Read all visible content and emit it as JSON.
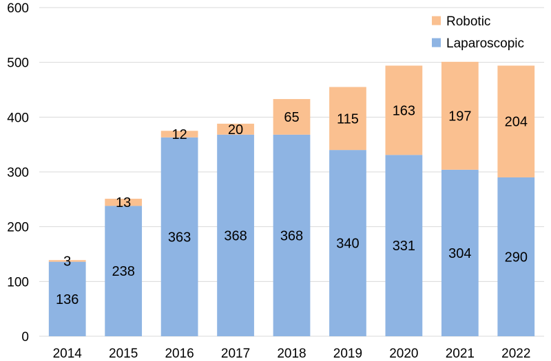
{
  "chart_data": {
    "type": "bar",
    "stacked": true,
    "title": "",
    "xlabel": "",
    "ylabel": "",
    "ylim": [
      0,
      600
    ],
    "yticks": [
      0,
      100,
      200,
      300,
      400,
      500,
      600
    ],
    "grid": true,
    "legend_position": "top-right",
    "categories": [
      "2014",
      "2015",
      "2016",
      "2017",
      "2018",
      "2019",
      "2020",
      "2021",
      "2022"
    ],
    "series": [
      {
        "name": "Laparoscopic",
        "color": "#8eb4e3",
        "values": [
          136,
          238,
          363,
          368,
          368,
          340,
          331,
          304,
          290
        ]
      },
      {
        "name": "Robotic",
        "color": "#fac090",
        "values": [
          3,
          13,
          12,
          20,
          65,
          115,
          163,
          197,
          204
        ]
      }
    ],
    "legend_order": [
      "Robotic",
      "Laparoscopic"
    ]
  }
}
